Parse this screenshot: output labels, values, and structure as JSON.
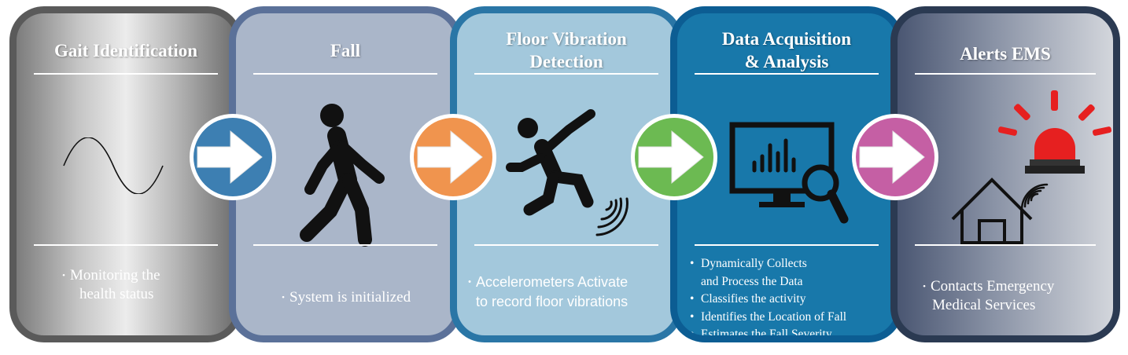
{
  "steps": [
    {
      "title": "Gait Identification",
      "bullets": [
        "Monitoring the health status"
      ],
      "icon": "sine-wave-icon"
    },
    {
      "title": "Fall",
      "bullets": [
        "System is initialized"
      ],
      "icon": "walking-person-icon"
    },
    {
      "title": "Floor Vibration Detection",
      "bullets": [
        "Accelerometers Activate to record floor vibrations"
      ],
      "icon": "falling-person-icon"
    },
    {
      "title": "Data Acquisition & Analysis",
      "bullets": [
        "Dynamically Collects and Process the Data",
        "Classifies the activity",
        "Identifies the Location of Fall",
        "Estimates the Fall Severity"
      ],
      "icon": "monitor-analysis-icon"
    },
    {
      "title": "Alerts EMS",
      "bullets": [
        "Contacts Emergency Medical Services"
      ],
      "icon": "house-alarm-icon"
    }
  ],
  "title_lines": {
    "step3": [
      "Floor Vibration",
      "Detection"
    ],
    "step4": [
      "Data Acquisition",
      "& Analysis"
    ]
  },
  "bullet_lines": {
    "step1": [
      "Monitoring the",
      "health status"
    ],
    "step3": [
      "Accelerometers Activate",
      "to record floor vibrations"
    ],
    "step4_item1": [
      "Dynamically Collects",
      "and Process the Data"
    ],
    "step5": [
      "Contacts Emergency",
      "Medical Services"
    ]
  },
  "connectors": [
    {
      "icon": "arrow-right-icon",
      "color": "#3d7fb2"
    },
    {
      "icon": "arrow-right-icon",
      "color": "#f0944e"
    },
    {
      "icon": "arrow-right-icon",
      "color": "#6cba52"
    },
    {
      "icon": "arrow-right-icon",
      "color": "#c55fa4"
    }
  ],
  "colors": {
    "step1_border": "#5a5a5a",
    "step2_border": "#5b7199",
    "step3_border": "#2a76a6",
    "step4_border": "#0c5d93",
    "step5_border": "#2b3a52",
    "alarm_red": "#e62020",
    "icon_dark": "#111111"
  }
}
